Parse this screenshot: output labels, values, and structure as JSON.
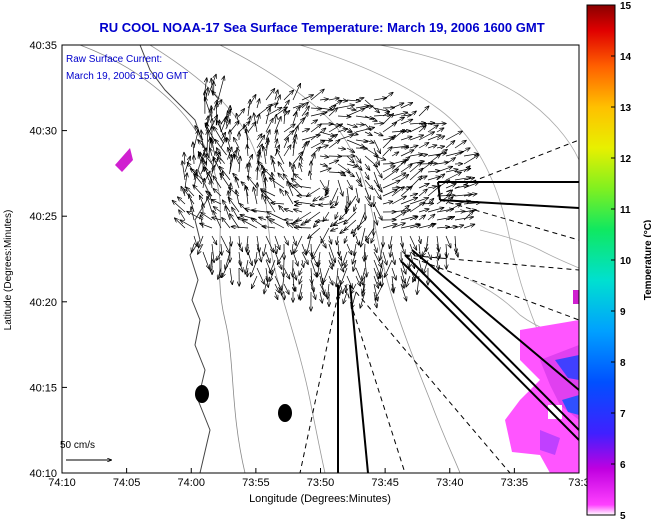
{
  "map": {
    "title": "RU COOL  NOAA-17  Sea Surface Temperature:  March 19, 2006 1600 GMT",
    "subtitle_line1": "Raw Surface Current:",
    "subtitle_line2": "March 19, 2006 15:00 GMT",
    "x_axis_label": "Longitude (Degrees:Minutes)",
    "y_axis_label": "Latitude (Degrees:Minutes)",
    "x_ticks": [
      "74:10",
      "74:05",
      "74:00",
      "73:55",
      "73:50",
      "73:45",
      "73:40",
      "73:35",
      "73:3"
    ],
    "y_ticks": [
      "40:35",
      "40:30",
      "40:25",
      "40:20",
      "40:15",
      "40:10"
    ],
    "scale_label": "50 cm/s"
  },
  "colorbar": {
    "label": "Temperature (°C)",
    "ticks": [
      "15",
      "14",
      "13",
      "12",
      "11",
      "10",
      "9",
      "8",
      "7",
      "6",
      "5"
    ],
    "colors": [
      "#ff00ff",
      "#b000e0",
      "#3a2aff",
      "#0050ff",
      "#00a0ff",
      "#00e0d0",
      "#10e860",
      "#80f020",
      "#e0f000",
      "#ffc000",
      "#ff6000",
      "#e00000",
      "#900000"
    ]
  }
}
